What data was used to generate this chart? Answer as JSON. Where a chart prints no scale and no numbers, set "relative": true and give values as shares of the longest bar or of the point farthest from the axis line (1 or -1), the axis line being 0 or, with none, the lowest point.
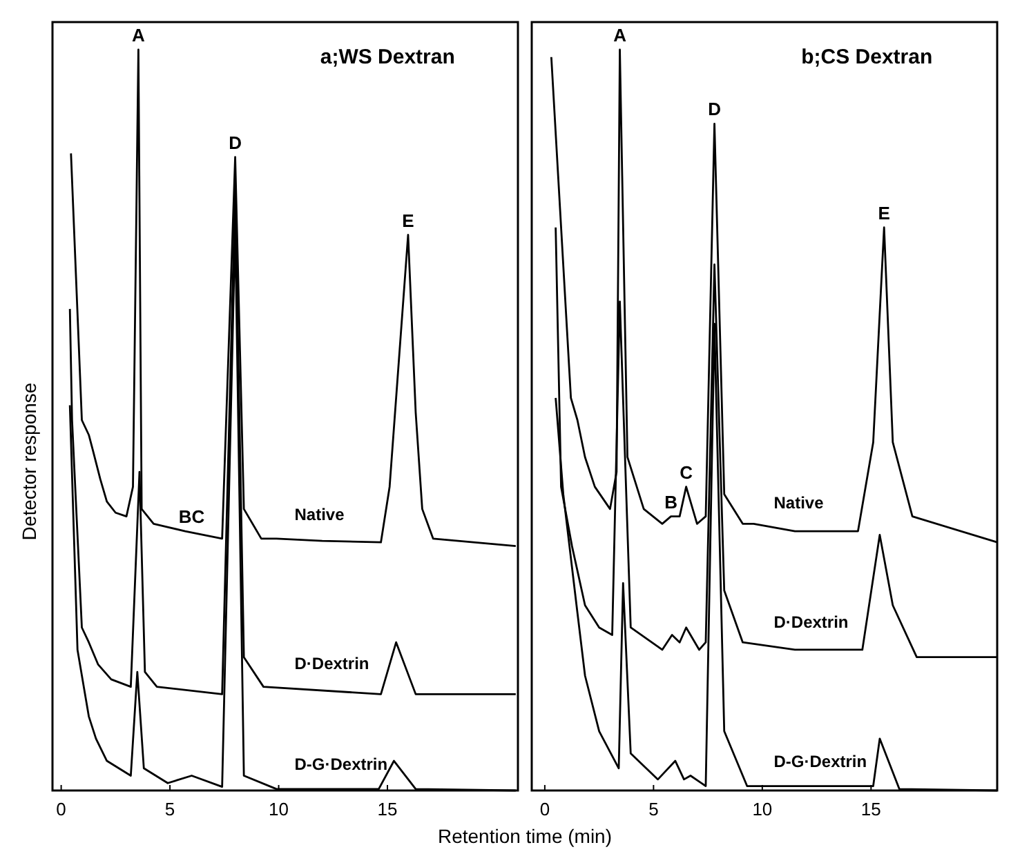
{
  "chart_data": [
    {
      "type": "line",
      "title": "a;WS Dextran",
      "xlabel": "Retention time (min)",
      "ylabel": "Detector response",
      "relative": true,
      "xlim": [
        -0.4,
        21
      ],
      "xticks": [
        0,
        5,
        10,
        15
      ],
      "legend": false,
      "grid": false,
      "series": [
        {
          "name": "Native",
          "color": "#000000",
          "x": [
            0.45,
            0.95,
            1.27,
            1.45,
            1.8,
            2.1,
            2.5,
            3.0,
            3.3,
            3.55,
            3.7,
            4.25,
            5.7,
            7.4,
            8.0,
            8.4,
            9.2,
            9.9,
            12.0,
            14.7,
            15.1,
            15.95,
            16.3,
            16.6,
            17.1,
            20.9
          ],
          "values": [
            0.86,
            0.5,
            0.48,
            0.46,
            0.42,
            0.39,
            0.375,
            0.37,
            0.41,
            1.0,
            0.38,
            0.36,
            0.35,
            0.34,
            0.855,
            0.38,
            0.34,
            0.34,
            0.337,
            0.335,
            0.41,
            0.75,
            0.51,
            0.38,
            0.34,
            0.33
          ]
        },
        {
          "name": "D·Dextrin",
          "color": "#000000",
          "x": [
            0.4,
            0.5,
            0.95,
            1.27,
            1.7,
            2.3,
            3.2,
            3.6,
            3.85,
            4.4,
            7.4,
            8.0,
            8.4,
            9.3,
            14.7,
            15.4,
            16.3,
            20.9
          ],
          "values": [
            0.65,
            0.5,
            0.22,
            0.2,
            0.17,
            0.15,
            0.14,
            0.43,
            0.16,
            0.14,
            0.13,
            0.81,
            0.18,
            0.14,
            0.13,
            0.2,
            0.13,
            0.13
          ]
        },
        {
          "name": "D-G·Dextrin",
          "color": "#000000",
          "x": [
            0.4,
            0.75,
            1.27,
            1.6,
            2.1,
            3.2,
            3.5,
            3.8,
            4.9,
            6.0,
            7.4,
            8.0,
            8.4,
            9.9,
            14.6,
            15.3,
            16.3,
            20.9
          ],
          "values": [
            0.52,
            0.19,
            0.1,
            0.07,
            0.04,
            0.02,
            0.16,
            0.03,
            0.01,
            0.02,
            0.005,
            0.76,
            0.02,
            0.002,
            0.002,
            0.04,
            0.002,
            0
          ]
        }
      ],
      "annotations": [
        {
          "text": "A",
          "x": 3.55,
          "y": 1.0
        },
        {
          "text": "D",
          "x": 8.0,
          "y": 0.855
        },
        {
          "text": "E",
          "x": 15.95,
          "y": 0.75
        },
        {
          "text": "BC",
          "x": 6.0,
          "y": 0.35
        }
      ]
    },
    {
      "type": "line",
      "title": "b;CS Dextran",
      "relative": true,
      "xlim": [
        -0.6,
        20.8
      ],
      "xticks": [
        0,
        5,
        10,
        15
      ],
      "legend": false,
      "grid": false,
      "series": [
        {
          "name": "Native",
          "color": "#000000",
          "x": [
            0.3,
            1.2,
            1.5,
            1.85,
            2.3,
            3.0,
            3.3,
            3.45,
            3.8,
            4.55,
            5.4,
            5.8,
            6.2,
            6.5,
            7.0,
            7.4,
            7.8,
            8.25,
            9.1,
            9.6,
            11.5,
            14.4,
            15.1,
            15.6,
            16.0,
            16.9,
            20.8
          ],
          "values": [
            0.99,
            0.53,
            0.5,
            0.45,
            0.41,
            0.38,
            0.43,
            1.0,
            0.45,
            0.38,
            0.36,
            0.37,
            0.37,
            0.41,
            0.36,
            0.37,
            0.9,
            0.4,
            0.36,
            0.36,
            0.35,
            0.35,
            0.47,
            0.76,
            0.47,
            0.37,
            0.335
          ]
        },
        {
          "name": "D·Dextrin",
          "color": "#000000",
          "x": [
            0.5,
            0.75,
            1.25,
            1.85,
            2.5,
            3.1,
            3.45,
            3.95,
            5.4,
            5.85,
            6.2,
            6.5,
            7.1,
            7.4,
            7.8,
            8.25,
            9.1,
            11.5,
            14.6,
            15.4,
            16.0,
            17.1,
            20.8
          ],
          "values": [
            0.76,
            0.41,
            0.33,
            0.25,
            0.22,
            0.21,
            0.66,
            0.22,
            0.19,
            0.21,
            0.2,
            0.22,
            0.19,
            0.2,
            0.71,
            0.27,
            0.2,
            0.19,
            0.19,
            0.345,
            0.25,
            0.18,
            0.18
          ]
        },
        {
          "name": "D-G·Dextrin",
          "color": "#000000",
          "x": [
            0.5,
            0.85,
            1.5,
            1.85,
            2.5,
            3.4,
            3.6,
            3.95,
            5.2,
            6.0,
            6.4,
            6.7,
            7.4,
            7.8,
            8.25,
            9.3,
            14.0,
            15.1,
            15.4,
            16.3,
            20.8
          ],
          "values": [
            0.53,
            0.4,
            0.24,
            0.155,
            0.08,
            0.03,
            0.28,
            0.05,
            0.015,
            0.04,
            0.015,
            0.02,
            0.006,
            0.63,
            0.08,
            0.006,
            0.006,
            0.006,
            0.07,
            0.002,
            0
          ]
        }
      ],
      "annotations": [
        {
          "text": "A",
          "x": 3.45,
          "y": 1.0
        },
        {
          "text": "B",
          "x": 5.8,
          "y": 0.37
        },
        {
          "text": "C",
          "x": 6.5,
          "y": 0.41
        },
        {
          "text": "D",
          "x": 7.8,
          "y": 0.9
        },
        {
          "text": "E",
          "x": 15.6,
          "y": 0.76
        }
      ]
    }
  ]
}
